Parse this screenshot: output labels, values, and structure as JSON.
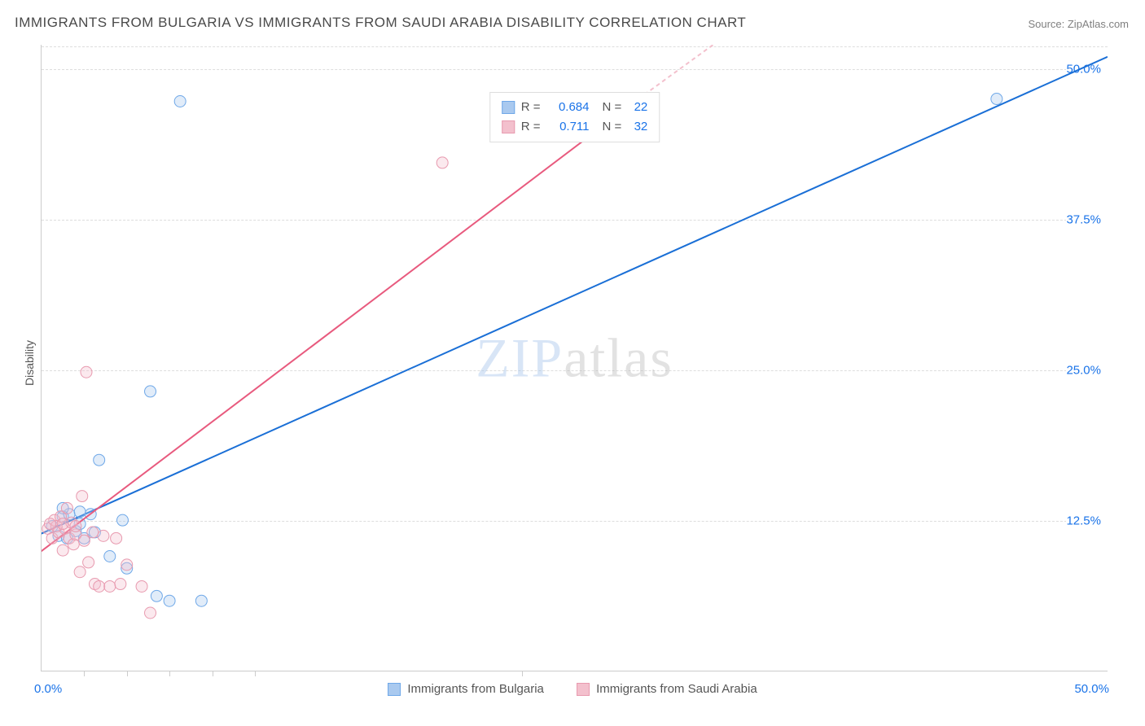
{
  "title": "IMMIGRANTS FROM BULGARIA VS IMMIGRANTS FROM SAUDI ARABIA DISABILITY CORRELATION CHART",
  "source_label": "Source: ZipAtlas.com",
  "ylabel": "Disability",
  "watermark": {
    "part1": "ZIP",
    "part2": "atlas"
  },
  "chart": {
    "type": "scatter",
    "xlim": [
      0,
      50
    ],
    "ylim": [
      0,
      52
    ],
    "y_gridlines": [
      12.5,
      25.0,
      37.5,
      50.0
    ],
    "y_tick_labels": [
      "12.5%",
      "25.0%",
      "37.5%",
      "50.0%"
    ],
    "y_tick_color": "#1a73e8",
    "x_ticks_minor": [
      2,
      4,
      6,
      8,
      10,
      22.5
    ],
    "x_label_min": "0.0%",
    "x_label_max": "50.0%",
    "grid_color": "#dddddd",
    "axis_color": "#cccccc",
    "background_color": "#ffffff",
    "marker_radius": 7,
    "marker_fill_opacity": 0.35,
    "line_width": 2,
    "series": [
      {
        "name": "Immigrants from Bulgaria",
        "color_stroke": "#6fa8e8",
        "color_fill": "#a9c9ef",
        "line_color": "#1a6fd6",
        "R": "0.684",
        "N": "22",
        "trend": {
          "x1": -1,
          "y1": 10.6,
          "x2": 50,
          "y2": 51.0
        },
        "points": [
          [
            0.5,
            12.0
          ],
          [
            0.8,
            11.2
          ],
          [
            1.0,
            12.8
          ],
          [
            1.2,
            11.0
          ],
          [
            1.3,
            13.0
          ],
          [
            1.6,
            11.6
          ],
          [
            1.8,
            12.2
          ],
          [
            2.0,
            11.0
          ],
          [
            2.3,
            13.0
          ],
          [
            2.5,
            11.5
          ],
          [
            2.7,
            17.5
          ],
          [
            3.2,
            9.5
          ],
          [
            3.8,
            12.5
          ],
          [
            4.0,
            8.5
          ],
          [
            5.1,
            23.2
          ],
          [
            5.4,
            6.2
          ],
          [
            6.0,
            5.8
          ],
          [
            6.5,
            47.3
          ],
          [
            7.5,
            5.8
          ],
          [
            44.8,
            47.5
          ],
          [
            1.0,
            13.5
          ],
          [
            1.8,
            13.2
          ]
        ]
      },
      {
        "name": "Immigrants from Saudi Arabia",
        "color_stroke": "#e89aaf",
        "color_fill": "#f3c0cd",
        "line_color": "#e85a7e",
        "R": "0.711",
        "N": "32",
        "trend": {
          "x1": -1,
          "y1": 8.6,
          "x2": 28,
          "y2": 47.5
        },
        "trend_dashed_extension": {
          "x1": 28,
          "y1": 47.5,
          "x2": 31.5,
          "y2": 52
        },
        "points": [
          [
            0.3,
            11.8
          ],
          [
            0.5,
            11.0
          ],
          [
            0.6,
            12.5
          ],
          [
            0.8,
            11.5
          ],
          [
            0.9,
            12.8
          ],
          [
            1.0,
            10.0
          ],
          [
            1.1,
            11.8
          ],
          [
            1.2,
            13.5
          ],
          [
            1.3,
            11.0
          ],
          [
            1.4,
            12.3
          ],
          [
            1.5,
            10.5
          ],
          [
            1.6,
            11.3
          ],
          [
            1.8,
            8.2
          ],
          [
            1.9,
            14.5
          ],
          [
            2.0,
            10.8
          ],
          [
            2.1,
            24.8
          ],
          [
            2.2,
            9.0
          ],
          [
            2.4,
            11.5
          ],
          [
            2.5,
            7.2
          ],
          [
            2.7,
            7.0
          ],
          [
            2.9,
            11.2
          ],
          [
            3.2,
            7.0
          ],
          [
            3.5,
            11.0
          ],
          [
            3.7,
            7.2
          ],
          [
            4.0,
            8.8
          ],
          [
            4.7,
            7.0
          ],
          [
            5.1,
            4.8
          ],
          [
            18.8,
            42.2
          ],
          [
            0.7,
            12.0
          ],
          [
            1.0,
            12.2
          ],
          [
            1.6,
            12.0
          ],
          [
            0.4,
            12.2
          ]
        ]
      }
    ]
  },
  "legend_top": {
    "r_label": "R =",
    "n_label": "N ="
  }
}
